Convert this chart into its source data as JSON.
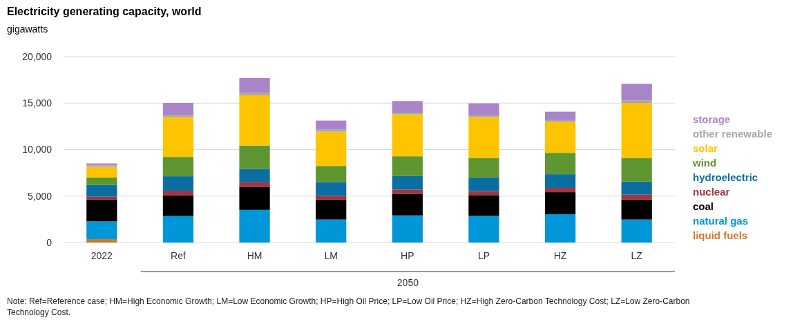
{
  "chart_data": {
    "type": "bar",
    "stacked": true,
    "title": "Electricity generating capacity, world",
    "ylabel": "gigawatts",
    "categories": [
      "2022",
      "Ref",
      "HM",
      "LM",
      "HP",
      "LP",
      "HZ",
      "LZ"
    ],
    "series": [
      {
        "name": "liquid fuels",
        "color": "#d0782e",
        "values": [
          370,
          0,
          0,
          0,
          0,
          0,
          0,
          0
        ]
      },
      {
        "name": "natural gas",
        "color": "#0096d7",
        "values": [
          1910,
          2850,
          3510,
          2480,
          2920,
          2870,
          3040,
          2480
        ]
      },
      {
        "name": "coal",
        "color": "#000000",
        "values": [
          2350,
          2220,
          2480,
          2150,
          2330,
          2230,
          2380,
          2150
        ]
      },
      {
        "name": "nuclear",
        "color": "#a8323e",
        "values": [
          300,
          500,
          490,
          390,
          440,
          440,
          450,
          520
        ]
      },
      {
        "name": "hydroelectric",
        "color": "#0a6fa0",
        "values": [
          1260,
          1560,
          1440,
          1490,
          1490,
          1460,
          1480,
          1410
        ]
      },
      {
        "name": "wind",
        "color": "#5e9732",
        "values": [
          810,
          2080,
          2520,
          1730,
          2100,
          2080,
          2300,
          2520
        ]
      },
      {
        "name": "solar",
        "color": "#ffc400",
        "values": [
          1140,
          4280,
          5400,
          3690,
          4510,
          4410,
          3340,
          5940
        ]
      },
      {
        "name": "other renewable",
        "color": "#a8a8a8",
        "values": [
          150,
          250,
          250,
          250,
          190,
          200,
          180,
          250
        ]
      },
      {
        "name": "storage",
        "color": "#aa84c9",
        "values": [
          220,
          1280,
          1610,
          940,
          1240,
          1290,
          910,
          1810
        ]
      }
    ],
    "ylim": [
      0,
      20000
    ],
    "yticks": [
      {
        "value": 0,
        "label": "0"
      },
      {
        "value": 5000,
        "label": "5,000"
      },
      {
        "value": 10000,
        "label": "10,000"
      },
      {
        "value": 15000,
        "label": "15,000"
      },
      {
        "value": 20000,
        "label": "20,000"
      }
    ],
    "grid": "y",
    "legend": "right",
    "annotations": [
      {
        "text": "2050"
      },
      "Note: Ref=Reference case; HM=High  Economic Growth; LM=Low Economic Growth; HP=High Oil Price; LP=Low Oil Price; HZ=High Zero-Carbon Technology Cost; LZ=Low Zero-Carbon Technology Cost."
    ]
  }
}
